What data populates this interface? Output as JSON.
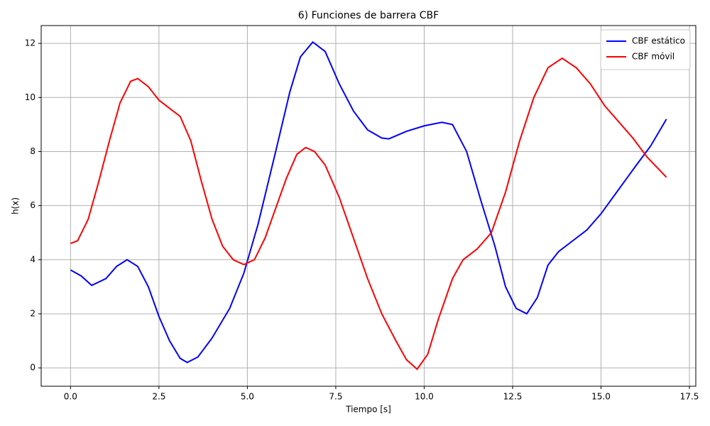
{
  "chart_data": {
    "type": "line",
    "title": "6) Funciones de barrera CBF",
    "x_label": "Tiempo [s]",
    "y_label": "h(x)",
    "xlim": [
      -0.83,
      17.68
    ],
    "ylim": [
      -0.68,
      12.66
    ],
    "xticks": [
      {
        "value": 0,
        "label": "0.0"
      },
      {
        "value": 2.5,
        "label": "2.5"
      },
      {
        "value": 5,
        "label": "5.0"
      },
      {
        "value": 7.5,
        "label": "7.5"
      },
      {
        "value": 10,
        "label": "10.0"
      },
      {
        "value": 12.5,
        "label": "12.5"
      },
      {
        "value": 15,
        "label": "15.0"
      },
      {
        "value": 17.5,
        "label": "17.5"
      }
    ],
    "yticks": [
      0,
      2,
      4,
      6,
      8,
      10,
      12
    ],
    "grid": true,
    "legend": "upper right",
    "series": [
      {
        "name": "CBF estático",
        "color": "#0000ff",
        "x": [
          0,
          0.3,
          0.6,
          1.0,
          1.3,
          1.6,
          1.9,
          2.2,
          2.5,
          2.8,
          3.1,
          3.3,
          3.6,
          4.0,
          4.5,
          4.9,
          5.3,
          5.8,
          6.2,
          6.5,
          6.85,
          7.2,
          7.6,
          8.0,
          8.4,
          8.8,
          9.0,
          9.5,
          10.0,
          10.5,
          10.8,
          11.2,
          11.6,
          12.0,
          12.3,
          12.6,
          12.9,
          13.2,
          13.5,
          13.8,
          14.2,
          14.6,
          15.0,
          15.5,
          16.0,
          16.4,
          16.85
        ],
        "values": [
          3.62,
          3.4,
          3.05,
          3.3,
          3.75,
          4.0,
          3.75,
          3.0,
          1.9,
          1.0,
          0.35,
          0.2,
          0.4,
          1.1,
          2.2,
          3.5,
          5.3,
          8.0,
          10.2,
          11.5,
          12.05,
          11.7,
          10.5,
          9.5,
          8.8,
          8.5,
          8.47,
          8.75,
          8.95,
          9.08,
          9.0,
          8.0,
          6.2,
          4.5,
          3.0,
          2.2,
          2.0,
          2.6,
          3.8,
          4.3,
          4.7,
          5.1,
          5.7,
          6.6,
          7.5,
          8.2,
          9.2
        ]
      },
      {
        "name": "CBF móvil",
        "color": "#ff0000",
        "x": [
          0,
          0.2,
          0.5,
          0.8,
          1.1,
          1.4,
          1.7,
          1.9,
          2.2,
          2.5,
          2.8,
          3.1,
          3.4,
          3.7,
          4.0,
          4.3,
          4.6,
          4.9,
          5.2,
          5.5,
          5.8,
          6.1,
          6.4,
          6.65,
          6.9,
          7.2,
          7.6,
          8.0,
          8.4,
          8.8,
          9.2,
          9.5,
          9.8,
          10.1,
          10.4,
          10.8,
          11.1,
          11.5,
          11.9,
          12.3,
          12.7,
          13.1,
          13.5,
          13.9,
          14.3,
          14.7,
          15.1,
          15.5,
          15.9,
          16.3,
          16.85
        ],
        "values": [
          4.6,
          4.7,
          5.5,
          6.9,
          8.4,
          9.8,
          10.6,
          10.7,
          10.4,
          9.9,
          9.6,
          9.3,
          8.4,
          6.9,
          5.5,
          4.5,
          4.0,
          3.82,
          4.0,
          4.8,
          5.9,
          7.0,
          7.9,
          8.15,
          8.0,
          7.5,
          6.3,
          4.8,
          3.3,
          2.0,
          1.0,
          0.3,
          -0.05,
          0.5,
          1.8,
          3.3,
          4.0,
          4.4,
          5.0,
          6.5,
          8.4,
          10.0,
          11.1,
          11.45,
          11.1,
          10.5,
          9.7,
          9.1,
          8.5,
          7.8,
          7.05
        ]
      }
    ]
  }
}
